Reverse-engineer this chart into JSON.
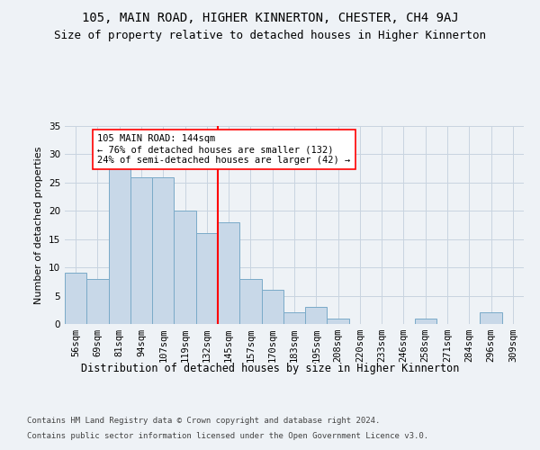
{
  "title1": "105, MAIN ROAD, HIGHER KINNERTON, CHESTER, CH4 9AJ",
  "title2": "Size of property relative to detached houses in Higher Kinnerton",
  "xlabel": "Distribution of detached houses by size in Higher Kinnerton",
  "ylabel": "Number of detached properties",
  "categories": [
    "56sqm",
    "69sqm",
    "81sqm",
    "94sqm",
    "107sqm",
    "119sqm",
    "132sqm",
    "145sqm",
    "157sqm",
    "170sqm",
    "183sqm",
    "195sqm",
    "208sqm",
    "220sqm",
    "233sqm",
    "246sqm",
    "258sqm",
    "271sqm",
    "284sqm",
    "296sqm",
    "309sqm"
  ],
  "values": [
    9,
    8,
    29,
    26,
    26,
    20,
    16,
    18,
    8,
    6,
    2,
    3,
    1,
    0,
    0,
    0,
    1,
    0,
    0,
    2,
    0
  ],
  "bar_color": "#c8d8e8",
  "bar_edge_color": "#7aaac8",
  "annotation_title": "105 MAIN ROAD: 144sqm",
  "annotation_line1": "← 76% of detached houses are smaller (132)",
  "annotation_line2": "24% of semi-detached houses are larger (42) →",
  "ylim": [
    0,
    35
  ],
  "yticks": [
    0,
    5,
    10,
    15,
    20,
    25,
    30,
    35
  ],
  "footer1": "Contains HM Land Registry data © Crown copyright and database right 2024.",
  "footer2": "Contains public sector information licensed under the Open Government Licence v3.0.",
  "bg_color": "#eef2f6",
  "plot_bg_color": "#eef2f6",
  "grid_color": "#c8d4e0",
  "title1_fontsize": 10,
  "title2_fontsize": 9,
  "xlabel_fontsize": 8.5,
  "ylabel_fontsize": 8,
  "tick_fontsize": 7.5,
  "footer_fontsize": 6.5,
  "annot_fontsize": 7.5
}
